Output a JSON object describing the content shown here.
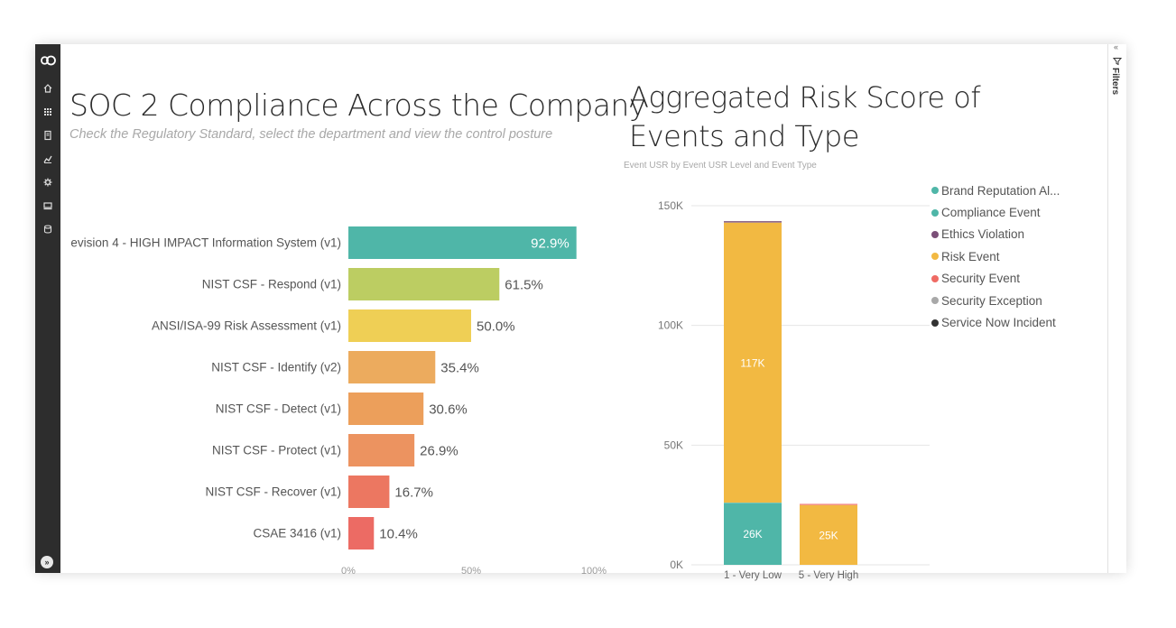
{
  "nav": {
    "icons": [
      "logo-icon",
      "home-icon",
      "apps-icon",
      "reports-icon",
      "analytics-icon",
      "settings-icon",
      "workspace-icon",
      "datasets-icon"
    ],
    "expand_label": "»"
  },
  "filters": {
    "label": "Filters",
    "collapse_label": "«"
  },
  "left_visual": {
    "title": "SOC 2 Compliance Across the Company",
    "subtitle": "Check the Regulatory Standard, select the department and view the control posture"
  },
  "right_visual": {
    "title": "Aggregated Risk Score of Events and Type",
    "subtitle": "Event USR by Event USR Level and Event Type"
  },
  "legend": {
    "items": [
      {
        "label": "Brand Reputation Al...",
        "color": "#4fb6a8"
      },
      {
        "label": "Compliance Event",
        "color": "#4fb6a8"
      },
      {
        "label": "Ethics Violation",
        "color": "#7b4f78"
      },
      {
        "label": "Risk Event",
        "color": "#f2b942"
      },
      {
        "label": "Security Event",
        "color": "#ef6b64"
      },
      {
        "label": "Security Exception",
        "color": "#a8a8a8"
      },
      {
        "label": "Service Now Incident",
        "color": "#333333"
      }
    ]
  },
  "chart_data": [
    {
      "type": "bar",
      "orientation": "horizontal",
      "title": "SOC 2 Compliance Across the Company",
      "categories": [
        "evision 4 - HIGH IMPACT Information System (v1)",
        "NIST CSF - Respond (v1)",
        "ANSI/ISA-99 Risk Assessment (v1)",
        "NIST CSF - Identify (v2)",
        "NIST CSF - Detect (v1)",
        "NIST CSF - Protect (v1)",
        "NIST CSF - Recover (v1)",
        "CSAE 3416 (v1)"
      ],
      "values": [
        92.9,
        61.5,
        50.0,
        35.4,
        30.6,
        26.9,
        16.7,
        10.4
      ],
      "value_labels": [
        "92.9%",
        "61.5%",
        "50.0%",
        "35.4%",
        "30.6%",
        "26.9%",
        "16.7%",
        "10.4%"
      ],
      "colors": [
        "#4fb6a8",
        "#bccd62",
        "#efcf55",
        "#ecab5e",
        "#ec9f5b",
        "#ec9360",
        "#ec7761",
        "#ec6b64"
      ],
      "xlim": [
        0,
        100
      ],
      "x_tick_labels": [
        "0%",
        "50%",
        "100%"
      ]
    },
    {
      "type": "bar",
      "orientation": "vertical",
      "stacked": true,
      "title": "Aggregated Risk Score of Events and Type",
      "categories": [
        "1 - Very Low",
        "5 - Very High"
      ],
      "series": [
        {
          "name": "Compliance Event",
          "values": [
            26000,
            0
          ],
          "color": "#4fb6a8"
        },
        {
          "name": "Risk Event",
          "values": [
            117000,
            25000
          ],
          "color": "#f2b942"
        },
        {
          "name": "Security Event",
          "values": [
            0,
            500
          ],
          "color": "#ef6b64"
        },
        {
          "name": "Ethics Violation",
          "values": [
            600,
            0
          ],
          "color": "#7b4f78"
        }
      ],
      "segment_labels": {
        "Compliance Event": [
          "26K",
          ""
        ],
        "Risk Event": [
          "117K",
          "25K"
        ]
      },
      "ylim": [
        0,
        150000
      ],
      "y_ticks": [
        0,
        50000,
        100000,
        150000
      ],
      "y_tick_labels": [
        "0K",
        "50K",
        "100K",
        "150K"
      ]
    }
  ]
}
